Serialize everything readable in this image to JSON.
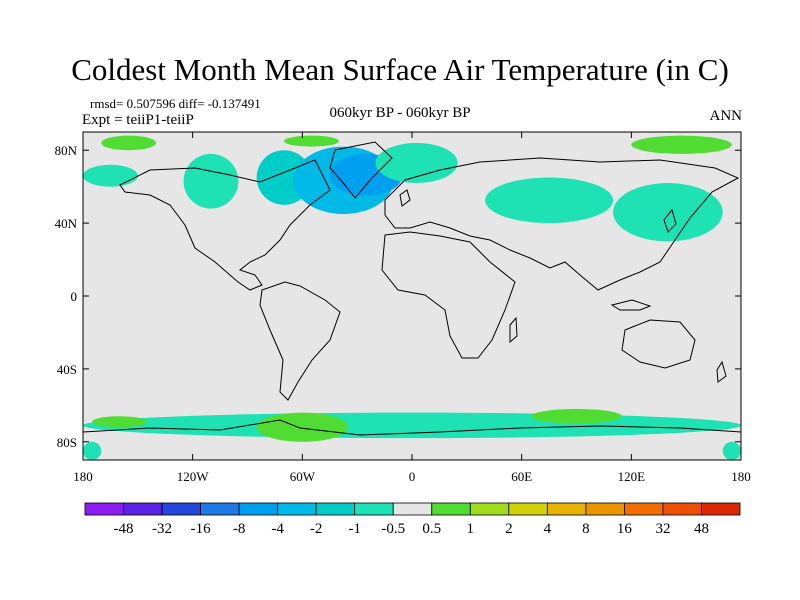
{
  "header": {
    "title": "Coldest Month Mean Surface Air Temperature (in C)",
    "stats": "rmsd= 0.507596 diff= -0.137491",
    "experiment": "Expt = teiiP1-teiiP",
    "period": "060kyr BP - 060kyr BP",
    "season": "ANN"
  },
  "chart_data": {
    "type": "heatmap",
    "title": "Coldest Month Mean Surface Air Temperature (in C)",
    "map_projection": "cylindrical equidistant",
    "xlim": [
      -180,
      180
    ],
    "ylim": [
      -90,
      90
    ],
    "x_ticks": [
      {
        "value": -180,
        "label": "180"
      },
      {
        "value": -120,
        "label": "120W"
      },
      {
        "value": -60,
        "label": "60W"
      },
      {
        "value": 0,
        "label": "0"
      },
      {
        "value": 60,
        "label": "60E"
      },
      {
        "value": 120,
        "label": "120E"
      },
      {
        "value": 180,
        "label": "180"
      }
    ],
    "y_ticks": [
      {
        "value": 80,
        "label": "80N"
      },
      {
        "value": 40,
        "label": "40N"
      },
      {
        "value": 0,
        "label": "0"
      },
      {
        "value": -40,
        "label": "40S"
      },
      {
        "value": -80,
        "label": "80S"
      }
    ],
    "background_fill": "#e6e6e6",
    "colorbar": {
      "levels": [
        "-48",
        "-32",
        "-16",
        "-8",
        "-4",
        "-2",
        "-1",
        "-0.5",
        "0.5",
        "1",
        "2",
        "4",
        "8",
        "16",
        "32",
        "48"
      ],
      "colors": [
        "#8c1cf0",
        "#5a23e6",
        "#2346dc",
        "#1e78e6",
        "#00a0f0",
        "#00b9e6",
        "#00cdc8",
        "#1ee1b4",
        "#e6e6e6",
        "#50dc32",
        "#a0dc1e",
        "#d2d20a",
        "#e6b400",
        "#eb9600",
        "#f06e00",
        "#eb5000",
        "#dc2800"
      ]
    },
    "anomaly_regions": [
      {
        "bin": 7,
        "lon": [
          -180,
          -150
        ],
        "lat": [
          60,
          72
        ],
        "note": "bering/alaska"
      },
      {
        "bin": 7,
        "lon": [
          -125,
          -95
        ],
        "lat": [
          48,
          78
        ]
      },
      {
        "bin": 6,
        "lon": [
          -85,
          -55
        ],
        "lat": [
          50,
          80
        ]
      },
      {
        "bin": 5,
        "lon": [
          -65,
          -10
        ],
        "lat": [
          45,
          82
        ]
      },
      {
        "bin": 4,
        "lon": [
          -45,
          -5
        ],
        "lat": [
          55,
          78
        ]
      },
      {
        "bin": 7,
        "lon": [
          -20,
          25
        ],
        "lat": [
          62,
          84
        ]
      },
      {
        "bin": 7,
        "lon": [
          40,
          110
        ],
        "lat": [
          40,
          65
        ]
      },
      {
        "bin": 7,
        "lon": [
          110,
          170
        ],
        "lat": [
          30,
          62
        ]
      },
      {
        "bin": 9,
        "lon": [
          -170,
          -140
        ],
        "lat": [
          80,
          88
        ]
      },
      {
        "bin": 9,
        "lon": [
          -70,
          -40
        ],
        "lat": [
          82,
          88
        ]
      },
      {
        "bin": 9,
        "lon": [
          120,
          175
        ],
        "lat": [
          78,
          88
        ]
      },
      {
        "bin": 7,
        "lon": [
          -180,
          180
        ],
        "lat": [
          -78,
          -64
        ]
      },
      {
        "bin": 9,
        "lon": [
          -85,
          -35
        ],
        "lat": [
          -80,
          -64
        ]
      },
      {
        "bin": 9,
        "lon": [
          -175,
          -145
        ],
        "lat": [
          -72,
          -66
        ]
      },
      {
        "bin": 9,
        "lon": [
          65,
          115
        ],
        "lat": [
          -70,
          -62
        ]
      },
      {
        "bin": 7,
        "lon": [
          -180,
          -170
        ],
        "lat": [
          -90,
          -80
        ]
      },
      {
        "bin": 7,
        "lon": [
          170,
          180
        ],
        "lat": [
          -90,
          -80
        ]
      }
    ]
  }
}
